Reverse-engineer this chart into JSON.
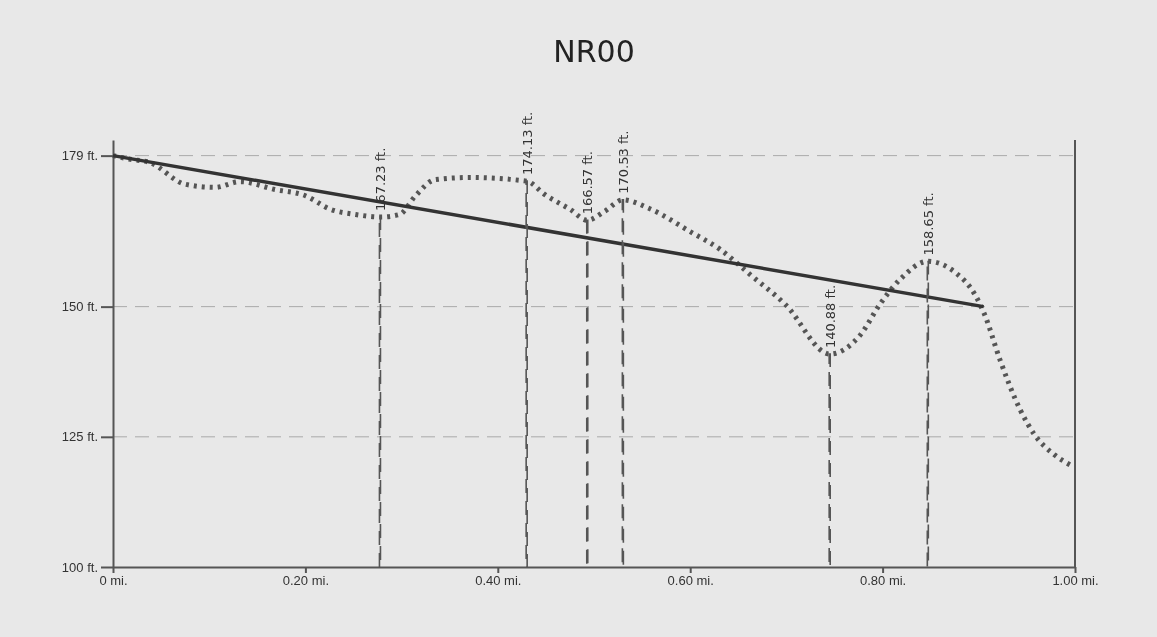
{
  "chart_data": {
    "type": "line",
    "title": "NR00",
    "xlim": [
      0,
      1
    ],
    "xticks": [
      {
        "value": 0,
        "label": "0 mi."
      },
      {
        "value": 0.2,
        "label": "0.20 mi."
      },
      {
        "value": 0.4,
        "label": "0.40 mi."
      },
      {
        "value": 0.6,
        "label": "0.60 mi."
      },
      {
        "value": 0.8,
        "label": "0.80 mi."
      },
      {
        "value": 1,
        "label": "1.00 mi."
      }
    ],
    "ylim": [
      100,
      182
    ],
    "yticks": [
      {
        "value": 100,
        "label": "100 ft."
      },
      {
        "value": 125,
        "label": "125 ft."
      },
      {
        "value": 150,
        "label": "150 ft."
      },
      {
        "value": 179,
        "label": "179 ft."
      }
    ],
    "grid": "y",
    "series": [
      {
        "line_style": "dotted",
        "color": "#555555",
        "x": [
          0,
          0.018,
          0.038,
          0.075,
          0.106,
          0.132,
          0.168,
          0.2,
          0.226,
          0.252,
          0.278,
          0.298,
          0.314,
          0.335,
          0.371,
          0.43,
          0.449,
          0.475,
          0.493,
          0.511,
          0.53,
          0.558,
          0.6,
          0.631,
          0.662,
          0.699,
          0.745,
          0.777,
          0.797,
          0.818,
          0.847,
          0.876,
          0.896,
          0.906,
          0.922,
          0.943,
          0.958,
          0.979,
          0.995
        ],
        "values": [
          179,
          178.3,
          177.7,
          173.5,
          172.9,
          174,
          172.5,
          171.3,
          168.7,
          167.7,
          167.2,
          167.7,
          171.2,
          174.4,
          174.8,
          174.1,
          171.5,
          168.7,
          166.6,
          168.3,
          170.5,
          168.8,
          164.4,
          161,
          156.2,
          150.4,
          140.9,
          144.6,
          150.4,
          155.2,
          158.7,
          156.5,
          152.3,
          148.5,
          139.8,
          130.2,
          125.4,
          121.5,
          119.6
        ]
      },
      {
        "line_style": "solid",
        "color": "#333333",
        "x": [
          0,
          0.905
        ],
        "values": [
          179,
          150
        ]
      },
      {
        "type": "bar",
        "line_style": "dashed",
        "color": "#555555",
        "x": [
          0.2775,
          0.43,
          0.493,
          0.53,
          0.745,
          0.847
        ],
        "values": [
          167.23,
          174.13,
          166.57,
          170.53,
          140.88,
          158.65
        ],
        "value_labels": [
          "167.23 ft.",
          "174.13 ft.",
          "166.57 ft.",
          "170.53 ft.",
          "140.88 ft.",
          "158.65 ft."
        ]
      }
    ]
  }
}
